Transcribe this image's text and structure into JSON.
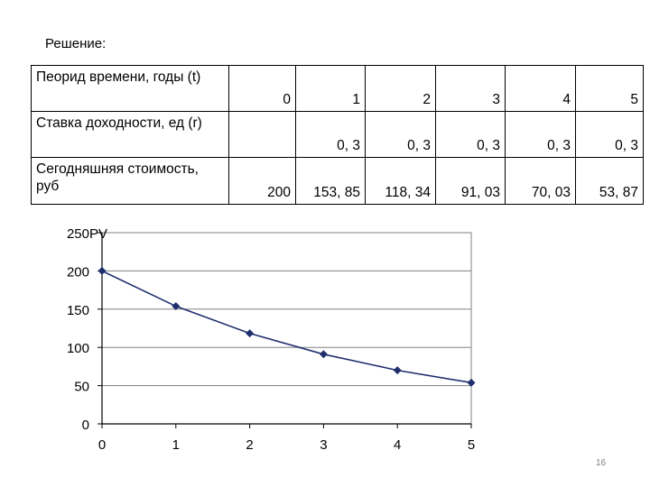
{
  "heading": "Решение:",
  "table": {
    "rows": [
      {
        "label": "Пеорид времени, годы (t)",
        "values": [
          "0",
          "1",
          "2",
          "3",
          "4",
          "5"
        ]
      },
      {
        "label": "Ставка доходности, ед (r)",
        "values": [
          "",
          "0, 3",
          "0, 3",
          "0, 3",
          "0, 3",
          "0, 3"
        ]
      },
      {
        "label": "Сегодняшняя стоимость, руб",
        "values": [
          "200",
          "153, 85",
          "118, 34",
          "91, 03",
          "70, 03",
          "53, 87"
        ]
      }
    ]
  },
  "chart_data": {
    "type": "line",
    "ylabel": "PV",
    "x": [
      0,
      1,
      2,
      3,
      4,
      5
    ],
    "series": [
      {
        "values": [
          200,
          153.85,
          118.34,
          91.03,
          70.03,
          53.87
        ]
      }
    ],
    "xlim": [
      0,
      5
    ],
    "ylim": [
      0,
      250
    ],
    "yticks": [
      0,
      50,
      100,
      150,
      200,
      250
    ],
    "xticks": [
      0,
      1,
      2,
      3,
      4,
      5
    ],
    "xtick_labels": [
      "0",
      "1",
      "2",
      "3",
      "4",
      "5"
    ],
    "ytick_labels": [
      "0",
      "50",
      "100",
      "150",
      "200",
      "250"
    ],
    "grid": true,
    "color": "#1f2f6e"
  },
  "page_number": "16"
}
